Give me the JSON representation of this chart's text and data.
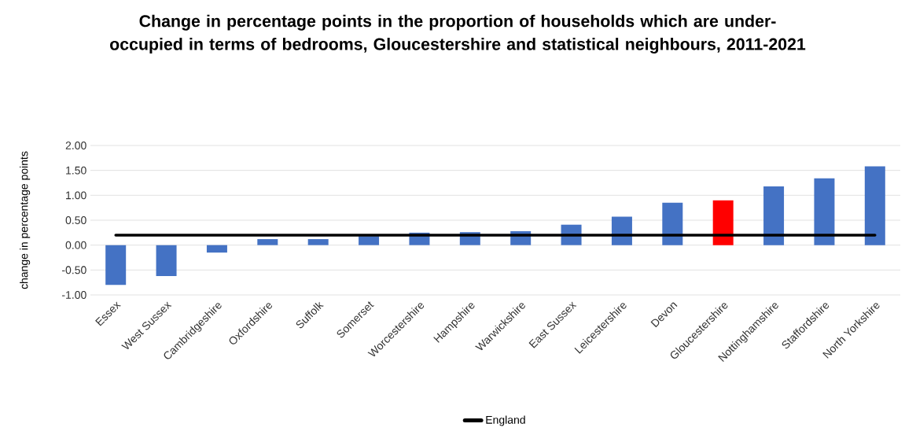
{
  "chart_data": {
    "type": "bar",
    "title": "Change in percentage points in the proportion of households which are under-occupied in terms of bedrooms, Gloucestershire and statistical neighbours, 2011-2021",
    "ylabel": "change in percentage points",
    "categories": [
      "Essex",
      "West Sussex",
      "Cambridgeshire",
      "Oxfordshire",
      "Suffolk",
      "Somerset",
      "Worcestershire",
      "Hampshire",
      "Warwickshire",
      "East Sussex",
      "Leicestershire",
      "Devon",
      "Gloucestershire",
      "Nottinghamshire",
      "Staffordshire",
      "North Yorkshire"
    ],
    "series": [
      {
        "colors": [
          "#4472c4",
          "#4472c4",
          "#4472c4",
          "#4472c4",
          "#4472c4",
          "#4472c4",
          "#4472c4",
          "#4472c4",
          "#4472c4",
          "#4472c4",
          "#4472c4",
          "#4472c4",
          "#ff0000",
          "#4472c4",
          "#4472c4",
          "#4472c4"
        ],
        "values": [
          -0.8,
          -0.62,
          -0.15,
          0.12,
          0.12,
          0.18,
          0.25,
          0.26,
          0.28,
          0.41,
          0.57,
          0.85,
          0.9,
          1.18,
          1.34,
          1.58
        ]
      },
      {
        "type": "line",
        "name": "England",
        "color": "#000000",
        "values": [
          0.2,
          0.2,
          0.2,
          0.2,
          0.2,
          0.2,
          0.2,
          0.2,
          0.2,
          0.2,
          0.2,
          0.2,
          0.2,
          0.2,
          0.2,
          0.2
        ]
      }
    ],
    "ylim": [
      -1,
      2
    ],
    "yticks": [
      {
        "value": -1,
        "label": "-1.00"
      },
      {
        "value": -0.5,
        "label": "-0.50"
      },
      {
        "value": 0,
        "label": "0.00"
      },
      {
        "value": 0.5,
        "label": "0.50"
      },
      {
        "value": 1,
        "label": "1.00"
      },
      {
        "value": 1.5,
        "label": "1.50"
      },
      {
        "value": 2,
        "label": "2.00"
      }
    ],
    "grid": "y",
    "legend": "bottom"
  }
}
